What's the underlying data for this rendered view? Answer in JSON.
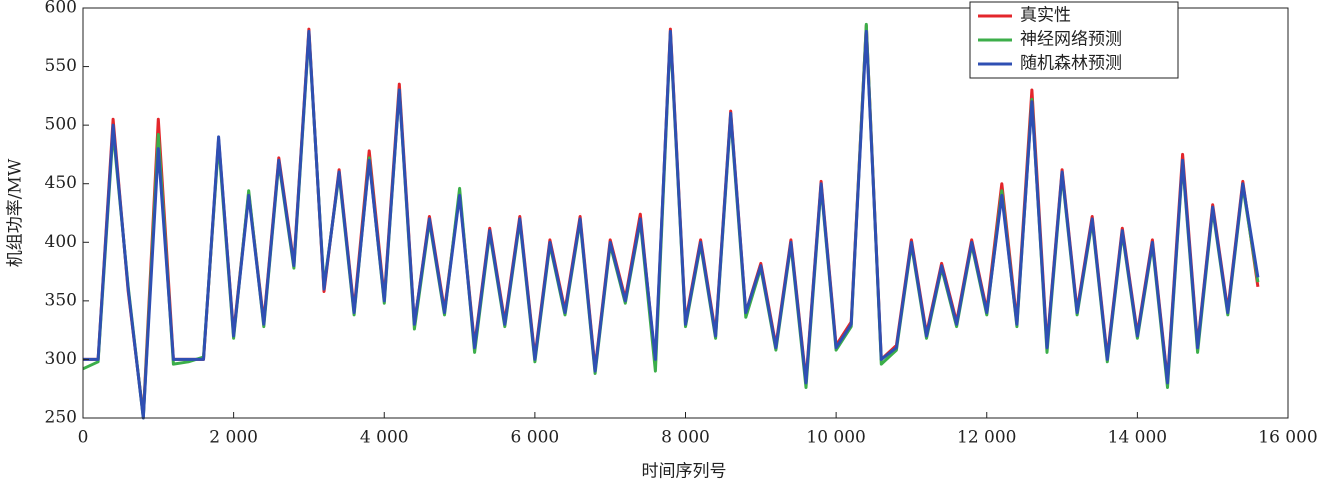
{
  "chart_data": {
    "type": "line",
    "xlabel": "时间序列号",
    "ylabel": "机组功率/MW",
    "x": [
      0,
      200,
      400,
      600,
      800,
      1000,
      1200,
      1400,
      1600,
      1800,
      2000,
      2200,
      2400,
      2600,
      2800,
      3000,
      3200,
      3400,
      3600,
      3800,
      4000,
      4200,
      4400,
      4600,
      4800,
      5000,
      5200,
      5400,
      5600,
      5800,
      6000,
      6200,
      6400,
      6600,
      6800,
      7000,
      7200,
      7400,
      7600,
      7800,
      8000,
      8200,
      8400,
      8600,
      8800,
      9000,
      9200,
      9400,
      9600,
      9800,
      10000,
      10200,
      10400,
      10600,
      10800,
      11000,
      11200,
      11400,
      11600,
      11800,
      12000,
      12200,
      12400,
      12600,
      12800,
      13000,
      13200,
      13400,
      13600,
      13800,
      14000,
      14200,
      14400,
      14600,
      14800,
      15000,
      15200,
      15400,
      15600
    ],
    "series": [
      {
        "name": "真实性",
        "color": "#e3262b",
        "values": [
          300,
          300,
          505,
          358,
          252,
          505,
          300,
          300,
          300,
          488,
          322,
          442,
          332,
          472,
          382,
          582,
          358,
          462,
          342,
          478,
          352,
          535,
          330,
          422,
          342,
          442,
          312,
          412,
          332,
          422,
          302,
          402,
          342,
          422,
          292,
          402,
          352,
          424,
          296,
          582,
          332,
          402,
          322,
          512,
          340,
          382,
          312,
          402,
          282,
          452,
          312,
          332,
          585,
          300,
          312,
          402,
          322,
          382,
          332,
          402,
          342,
          450,
          332,
          530,
          312,
          462,
          342,
          422,
          302,
          412,
          322,
          402,
          282,
          475,
          312,
          432,
          342,
          452,
          362
        ]
      },
      {
        "name": "神经网络预测",
        "color": "#3cae4a",
        "values": [
          292,
          298,
          495,
          362,
          250,
          492,
          296,
          298,
          302,
          485,
          318,
          444,
          328,
          468,
          378,
          578,
          362,
          458,
          338,
          472,
          348,
          530,
          326,
          418,
          338,
          446,
          306,
          408,
          328,
          418,
          298,
          398,
          338,
          418,
          288,
          398,
          348,
          418,
          290,
          578,
          328,
          398,
          318,
          508,
          336,
          378,
          308,
          398,
          276,
          448,
          308,
          328,
          586,
          296,
          308,
          398,
          318,
          378,
          328,
          398,
          338,
          444,
          328,
          522,
          306,
          458,
          338,
          418,
          298,
          408,
          318,
          398,
          276,
          468,
          306,
          428,
          338,
          448,
          366
        ]
      },
      {
        "name": "随机森林预测",
        "color": "#2f4fb3",
        "values": [
          300,
          300,
          500,
          360,
          250,
          480,
          300,
          300,
          300,
          490,
          320,
          440,
          330,
          470,
          380,
          580,
          360,
          460,
          340,
          470,
          350,
          530,
          330,
          420,
          340,
          440,
          310,
          410,
          330,
          420,
          300,
          400,
          340,
          420,
          290,
          400,
          350,
          420,
          300,
          580,
          330,
          400,
          320,
          510,
          340,
          380,
          310,
          400,
          280,
          450,
          310,
          330,
          580,
          300,
          310,
          400,
          320,
          380,
          330,
          400,
          340,
          440,
          330,
          520,
          310,
          460,
          340,
          420,
          300,
          410,
          320,
          400,
          280,
          470,
          310,
          430,
          340,
          450,
          370
        ]
      }
    ],
    "xlim": [
      0,
      16000
    ],
    "xticks": [
      0,
      {
        "value": 2000,
        "label": "2 000"
      },
      {
        "value": 4000,
        "label": "4 000"
      },
      {
        "value": 6000,
        "label": "6 000"
      },
      {
        "value": 8000,
        "label": "8 000"
      },
      {
        "value": 10000,
        "label": "10 000"
      },
      {
        "value": 12000,
        "label": "12 000"
      },
      {
        "value": 14000,
        "label": "14 000"
      },
      {
        "value": 16000,
        "label": "16 000"
      }
    ],
    "ylim": [
      250,
      600
    ],
    "yticks": [
      250,
      300,
      350,
      400,
      450,
      500,
      550,
      600
    ],
    "legend": "upper-right",
    "grid": false
  }
}
